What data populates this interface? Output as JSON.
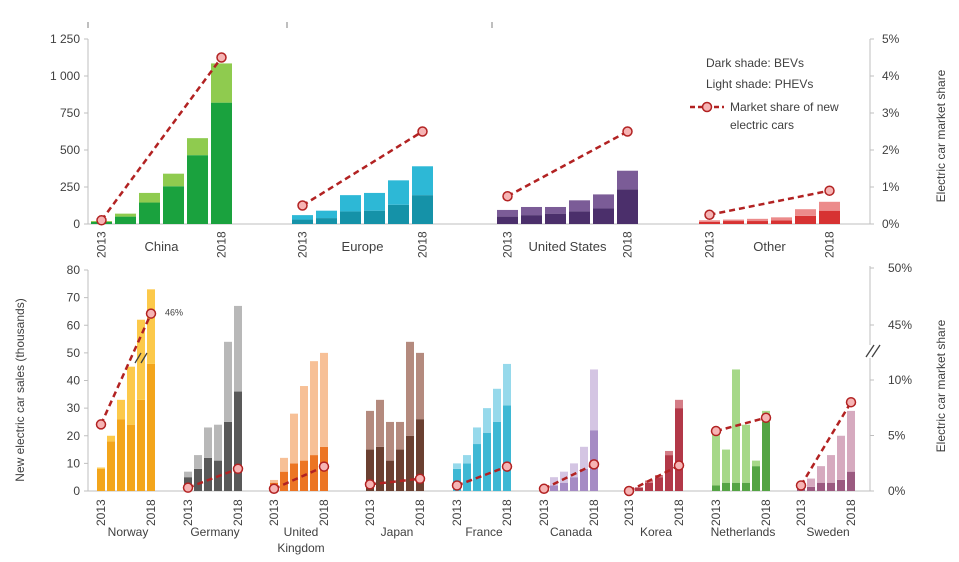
{
  "chart_data": [
    {
      "type": "bar",
      "stacked": true,
      "yticks": [
        "0",
        "250",
        "500",
        "750",
        "1 000",
        "1 250"
      ],
      "ylim": [
        0,
        1250
      ],
      "y2label": "Electric car market share",
      "y2ticks": [
        "0%",
        "1%",
        "2%",
        "3%",
        "4%",
        "5%"
      ],
      "y2lim": [
        0,
        5
      ],
      "legend": {
        "position": "top-right",
        "bev": "Dark shade: BEVs",
        "phev": "Light shade: PHEVs",
        "share_line1": "Market share of new",
        "share_line2": "electric cars"
      },
      "groups": [
        {
          "name": "China",
          "colors": {
            "bev": "#1aa23e",
            "phev": "#8fcb4f"
          },
          "x": [
            2013,
            2014,
            2015,
            2016,
            2017,
            2018
          ],
          "x_labels": [
            "2013",
            "2018"
          ],
          "bev": [
            14,
            50,
            145,
            255,
            465,
            820
          ],
          "phev": [
            6,
            20,
            65,
            85,
            115,
            265
          ],
          "share": {
            "x": [
              2013,
              2018
            ],
            "values": [
              0.1,
              4.5
            ]
          }
        },
        {
          "name": "Europe",
          "colors": {
            "bev": "#1592a8",
            "phev": "#2db8d6"
          },
          "x": [
            2013,
            2014,
            2015,
            2016,
            2017,
            2018
          ],
          "x_labels": [
            "2013",
            "2018"
          ],
          "bev": [
            30,
            40,
            85,
            90,
            130,
            195
          ],
          "phev": [
            30,
            50,
            110,
            120,
            165,
            195
          ],
          "share": {
            "x": [
              2013,
              2018
            ],
            "values": [
              0.5,
              2.5
            ]
          }
        },
        {
          "name": "United States",
          "colors": {
            "bev": "#4b2f6b",
            "phev": "#7b5c97"
          },
          "x": [
            2013,
            2014,
            2015,
            2016,
            2017,
            2018
          ],
          "x_labels": [
            "2013",
            "2018"
          ],
          "bev": [
            50,
            60,
            70,
            85,
            105,
            235
          ],
          "phev": [
            45,
            55,
            45,
            75,
            95,
            125
          ],
          "share": {
            "x": [
              2013,
              2018
            ],
            "values": [
              0.75,
              2.5
            ]
          }
        },
        {
          "name": "Other",
          "colors": {
            "bev": "#d73232",
            "phev": "#ec8b8b"
          },
          "x": [
            2013,
            2014,
            2015,
            2016,
            2017,
            2018
          ],
          "x_labels": [
            "2013",
            "2018"
          ],
          "bev": [
            15,
            20,
            20,
            25,
            55,
            90
          ],
          "phev": [
            10,
            10,
            15,
            20,
            45,
            60
          ],
          "share": {
            "x": [
              2013,
              2018
            ],
            "values": [
              0.25,
              0.9
            ]
          }
        }
      ]
    },
    {
      "type": "bar",
      "stacked": true,
      "ylabel": "New electric car sales (thousands)",
      "yticks": [
        "0",
        "10",
        "20",
        "30",
        "40",
        "50",
        "60",
        "70",
        "80"
      ],
      "ylim": [
        0,
        80
      ],
      "y2label": "Electric car market share",
      "y2ticks": [
        "0%",
        "5%",
        "10%",
        "45%",
        "50%"
      ],
      "y2_break": "between 10% and 45%",
      "share_annotation": "46%",
      "groups": [
        {
          "name": "Norway",
          "name_line2": "",
          "colors": {
            "bev": "#f3a51b",
            "phev": "#fcc94a"
          },
          "x": [
            2013,
            2014,
            2015,
            2016,
            2017,
            2018
          ],
          "x_labels": [
            "2013",
            "2018"
          ],
          "bev": [
            8,
            18,
            26,
            24,
            33,
            46
          ],
          "phev": [
            0.5,
            2,
            7,
            21,
            29,
            27
          ],
          "share": {
            "x": [
              2013,
              2018
            ],
            "values": [
              6,
              46
            ]
          }
        },
        {
          "name": "Germany",
          "name_line2": "",
          "colors": {
            "bev": "#595959",
            "phev": "#b8b8b8"
          },
          "x": [
            2013,
            2014,
            2015,
            2016,
            2017,
            2018
          ],
          "x_labels": [
            "2013",
            "2018"
          ],
          "bev": [
            5,
            8,
            12,
            11,
            25,
            36
          ],
          "phev": [
            2,
            5,
            11,
            13,
            29,
            31
          ],
          "share": {
            "x": [
              2013,
              2018
            ],
            "values": [
              0.3,
              2
            ]
          }
        },
        {
          "name": "United",
          "name_line2": "Kingdom",
          "colors": {
            "bev": "#ec7524",
            "phev": "#f7c097"
          },
          "x": [
            2013,
            2014,
            2015,
            2016,
            2017,
            2018
          ],
          "x_labels": [
            "2013",
            "2018"
          ],
          "bev": [
            3,
            7,
            10,
            11,
            13,
            16
          ],
          "phev": [
            1,
            5,
            18,
            27,
            34,
            34
          ],
          "share": {
            "x": [
              2013,
              2018
            ],
            "values": [
              0.2,
              2.2
            ]
          }
        },
        {
          "name": "Japan",
          "name_line2": "",
          "colors": {
            "bev": "#6b4031",
            "phev": "#b48a7e"
          },
          "x": [
            2013,
            2014,
            2015,
            2016,
            2017,
            2018
          ],
          "x_labels": [
            "2013",
            "2018"
          ],
          "bev": [
            15,
            16,
            11,
            15,
            20,
            26
          ],
          "phev": [
            14,
            17,
            14,
            10,
            34,
            24
          ],
          "share": {
            "x": [
              2013,
              2018
            ],
            "values": [
              0.6,
              1.1
            ]
          }
        },
        {
          "name": "France",
          "name_line2": "",
          "colors": {
            "bev": "#3eb8d4",
            "phev": "#96d9eb"
          },
          "x": [
            2013,
            2014,
            2015,
            2016,
            2017,
            2018
          ],
          "x_labels": [
            "2013",
            "2018"
          ],
          "bev": [
            8,
            10,
            17,
            21,
            25,
            31
          ],
          "phev": [
            2,
            3,
            6,
            9,
            12,
            15
          ],
          "share": {
            "x": [
              2013,
              2018
            ],
            "values": [
              0.5,
              2.2
            ]
          }
        },
        {
          "name": "Canada",
          "name_line2": "",
          "colors": {
            "bev": "#a58bc4",
            "phev": "#d4c5e3"
          },
          "x": [
            2013,
            2014,
            2015,
            2016,
            2017,
            2018
          ],
          "x_labels": [
            "2013",
            "2018"
          ],
          "bev": [
            1,
            2,
            3,
            5,
            8,
            22
          ],
          "phev": [
            1,
            3,
            4,
            5,
            8,
            22
          ],
          "share": {
            "x": [
              2013,
              2018
            ],
            "values": [
              0.2,
              2.4
            ]
          }
        },
        {
          "name": "Korea",
          "name_line2": "",
          "colors": {
            "bev": "#b23848",
            "phev": "#d47c86"
          },
          "x": [
            2013,
            2014,
            2015,
            2016,
            2017,
            2018
          ],
          "x_labels": [
            "2013",
            "2018"
          ],
          "bev": [
            0.5,
            1.2,
            3,
            5,
            13,
            30
          ],
          "phev": [
            0,
            0.2,
            0.8,
            0.8,
            1.5,
            3
          ],
          "share": {
            "x": [
              2013,
              2018
            ],
            "values": [
              0,
              2.3
            ]
          }
        },
        {
          "name": "Netherlands",
          "name_line2": "",
          "colors": {
            "bev": "#54a444",
            "phev": "#a6d889"
          },
          "x": [
            2013,
            2014,
            2015,
            2016,
            2017,
            2018
          ],
          "x_labels": [
            "2013",
            "2018"
          ],
          "bev": [
            2,
            3,
            3,
            3,
            9,
            25
          ],
          "phev": [
            21,
            12,
            41,
            21,
            2,
            4
          ],
          "share": {
            "x": [
              2013,
              2018
            ],
            "values": [
              5.4,
              6.6
            ]
          }
        },
        {
          "name": "Sweden",
          "name_line2": "",
          "colors": {
            "bev": "#9b5a80",
            "phev": "#d6aabf"
          },
          "x": [
            2013,
            2014,
            2015,
            2016,
            2017,
            2018
          ],
          "x_labels": [
            "2013",
            "2018"
          ],
          "bev": [
            1,
            1.5,
            3,
            3,
            4,
            7
          ],
          "phev": [
            1,
            3,
            6,
            10,
            16,
            22
          ],
          "share": {
            "x": [
              2013,
              2018
            ],
            "values": [
              0.5,
              8
            ]
          }
        }
      ]
    }
  ]
}
